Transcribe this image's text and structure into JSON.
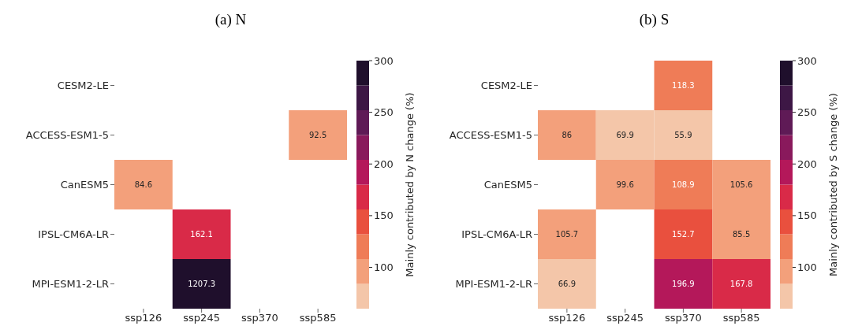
{
  "chart_data": [
    {
      "type": "heatmap",
      "title": "(a) N",
      "categories": [
        "ssp126",
        "ssp245",
        "ssp370",
        "ssp585"
      ],
      "y_categories": [
        "CESM2-LE",
        "ACCESS-ESM1-5",
        "CanESM5",
        "IPSL-CM6A-LR",
        "MPI-ESM1-2-LR"
      ],
      "cells": [
        [
          null,
          null,
          null,
          null
        ],
        [
          null,
          null,
          null,
          92.5
        ],
        [
          84.6,
          null,
          null,
          null
        ],
        [
          null,
          162.1,
          null,
          null
        ],
        [
          null,
          1207.3,
          null,
          null
        ]
      ],
      "clabel": "Mainly contributed by N change (%)",
      "clim": [
        60,
        300
      ],
      "cticks": [
        100,
        150,
        200,
        250,
        300
      ],
      "data_labels": true
    },
    {
      "type": "heatmap",
      "title": "(b) S",
      "categories": [
        "ssp126",
        "ssp245",
        "ssp370",
        "ssp585"
      ],
      "y_categories": [
        "CESM2-LE",
        "ACCESS-ESM1-5",
        "CanESM5",
        "IPSL-CM6A-LR",
        "MPI-ESM1-2-LR"
      ],
      "cells": [
        [
          null,
          null,
          118.3,
          null
        ],
        [
          86,
          69.9,
          55.9,
          null
        ],
        [
          null,
          99.6,
          108.9,
          105.6
        ],
        [
          105.7,
          null,
          152.7,
          85.5
        ],
        [
          66.9,
          null,
          196.9,
          167.8
        ]
      ],
      "clabel": "Mainly contributed by S change (%)",
      "clim": [
        60,
        300
      ],
      "cticks": [
        100,
        150,
        200,
        250,
        300
      ],
      "data_labels": true
    }
  ]
}
